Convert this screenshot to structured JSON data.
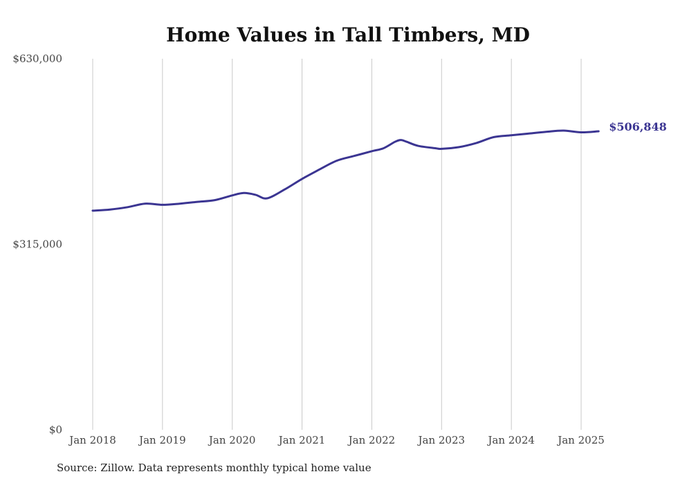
{
  "chart_data": {
    "type": "line",
    "title": "Home Values in Tall Timbers, MD",
    "xlabel": "",
    "ylabel": "",
    "x_ticks": [
      "Jan 2018",
      "Jan 2019",
      "Jan 2020",
      "Jan 2021",
      "Jan 2022",
      "Jan 2023",
      "Jan 2024",
      "Jan 2025"
    ],
    "y_ticks": [
      "$0",
      "$315,000",
      "$630,000"
    ],
    "ylim": [
      0,
      630000
    ],
    "grid": "vertical",
    "line_color": "#3b3592",
    "end_label": "$506,848",
    "series": [
      {
        "x": [
          "2018-01",
          "2018-04",
          "2018-07",
          "2018-10",
          "2019-01",
          "2019-04",
          "2019-07",
          "2019-10",
          "2020-01",
          "2020-03",
          "2020-05",
          "2020-07",
          "2020-10",
          "2021-01",
          "2021-04",
          "2021-07",
          "2021-10",
          "2022-01",
          "2022-03",
          "2022-05",
          "2022-06",
          "2022-07",
          "2022-09",
          "2022-12",
          "2023-01",
          "2023-04",
          "2023-07",
          "2023-10",
          "2024-01",
          "2024-04",
          "2024-07",
          "2024-10",
          "2025-01",
          "2025-04"
        ],
        "values": [
          372000,
          374000,
          378000,
          384000,
          382000,
          384000,
          387000,
          390000,
          398000,
          402000,
          399000,
          393000,
          408000,
          426000,
          442000,
          457000,
          465000,
          473000,
          478000,
          489000,
          492000,
          489000,
          482000,
          478000,
          477000,
          480000,
          487000,
          497000,
          500000,
          503000,
          506000,
          508000,
          505000,
          506848
        ]
      }
    ]
  },
  "source": "Source: Zillow. Data represents monthly typical home value"
}
